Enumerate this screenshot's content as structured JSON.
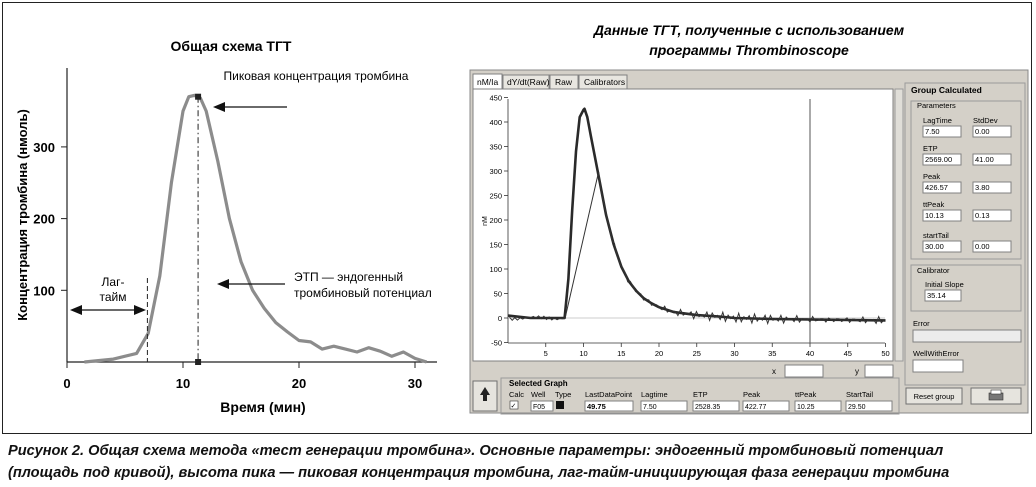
{
  "left_panel": {
    "title": "Общая схема ТГТ",
    "peak_annotation": "Пиковая концентрация тромбина",
    "etp_annotation_line1": "ЭТП — эндогенный",
    "etp_annotation_line2": "тромбиновый потенциал",
    "lag_annotation_line1": "Лаг-",
    "lag_annotation_line2": "тайм"
  },
  "right_panel": {
    "title_line1": "Данные ТГТ, полученные с использованием",
    "title_line2": "программы Thrombinoscope",
    "tabs": [
      "nM/Ia",
      "dY/dt(Raw)",
      "Raw",
      "Calibrators"
    ],
    "y_unit": "nM",
    "cursor_x_label": "x",
    "cursor_y_label": "y",
    "group_calculated": {
      "title": "Group Calculated",
      "parameters_title": "Parameters",
      "headers": {
        "value": "",
        "stddev": "StdDev"
      },
      "params": [
        {
          "name": "LagTime",
          "value": "7.50",
          "stddev": "0.00"
        },
        {
          "name": "ETP",
          "value": "2569.00",
          "stddev": "41.00"
        },
        {
          "name": "Peak",
          "value": "426.57",
          "stddev": "3.80"
        },
        {
          "name": "ttPeak",
          "value": "10.13",
          "stddev": "0.13"
        },
        {
          "name": "startTail",
          "value": "30.00",
          "stddev": "0.00"
        }
      ],
      "calibrator_title": "Calibrator",
      "initial_slope_label": "Initial Slope",
      "initial_slope_value": "35.14",
      "error_label": "Error",
      "well_with_error_label": "WellWithError",
      "reset_button": "Reset group"
    },
    "selected_graph": {
      "title": "Selected Graph",
      "columns": [
        "Calc",
        "Well",
        "Type",
        "LastDataPoint",
        "Lagtime",
        "ETP",
        "Peak",
        "ttPeak",
        "StartTail"
      ],
      "row": {
        "calc": "✓",
        "well": "F05",
        "last_data_point": "49.75",
        "lagtime": "7.50",
        "etp": "2528.35",
        "peak": "422.77",
        "ttpeak": "10.25",
        "start_tail": "29.50"
      }
    }
  },
  "caption": {
    "line1": "Рисунок 2. Общая схема метода «тест генерации тромбина». Основные параметры: эндогенный тромбиновый потенциал",
    "line2": "(площадь под кривой), высота пика — пиковая концентрация тромбина, лаг-тайм-инициирующая фаза генерации тромбина"
  },
  "chart_data": [
    {
      "type": "line",
      "title": "Общая схема ТГТ",
      "xlabel": "Время (мин)",
      "ylabel": "Концентрация тромбина (нмоль)",
      "xlim": [
        0,
        32
      ],
      "ylim": [
        0,
        400
      ],
      "x_ticks": [
        0,
        10,
        20,
        30
      ],
      "y_ticks": [
        100,
        200,
        300
      ],
      "grid": false,
      "series": [
        {
          "x": [
            1.5,
            4,
            6,
            7,
            8,
            9,
            10,
            10.5,
            11,
            11.5,
            12,
            13,
            14,
            15,
            16,
            17,
            18,
            19,
            20,
            21,
            22,
            23,
            24,
            25,
            26,
            27,
            28,
            29,
            30,
            31
          ],
          "values": [
            0,
            4,
            12,
            40,
            120,
            250,
            350,
            370,
            372,
            368,
            350,
            280,
            200,
            140,
            100,
            75,
            55,
            42,
            30,
            28,
            18,
            22,
            18,
            14,
            20,
            15,
            8,
            14,
            5,
            0
          ]
        }
      ],
      "markers": [
        {
          "x": 11.3,
          "y": 370,
          "label": "peak"
        },
        {
          "x": 11.3,
          "y": 0,
          "label": "ttpeak"
        },
        {
          "x": 6.5,
          "y": 0,
          "label": "lag-time"
        }
      ]
    },
    {
      "type": "line",
      "title": "",
      "xlabel": "",
      "ylabel": "nM",
      "xlim": [
        0,
        51
      ],
      "ylim": [
        -50,
        450
      ],
      "x_ticks": [
        5,
        10,
        15,
        20,
        25,
        30,
        35,
        40,
        45,
        50
      ],
      "y_ticks": [
        -50,
        0,
        50,
        100,
        150,
        200,
        250,
        300,
        350,
        400,
        450
      ],
      "grid": false,
      "vertical_cursor_x": 40,
      "series": [
        {
          "x": [
            0,
            3,
            5,
            7.5,
            8,
            8.5,
            9,
            9.5,
            10,
            10.13,
            10.5,
            11,
            12,
            13,
            14,
            15,
            16,
            17,
            18,
            19,
            20,
            22,
            25,
            28,
            30,
            35,
            40,
            45,
            50
          ],
          "values": [
            5,
            0,
            0,
            0,
            80,
            220,
            340,
            410,
            425,
            427,
            410,
            370,
            290,
            210,
            150,
            105,
            75,
            55,
            40,
            30,
            22,
            12,
            6,
            3,
            0,
            -2,
            -3,
            -4,
            -5
          ]
        }
      ]
    }
  ]
}
